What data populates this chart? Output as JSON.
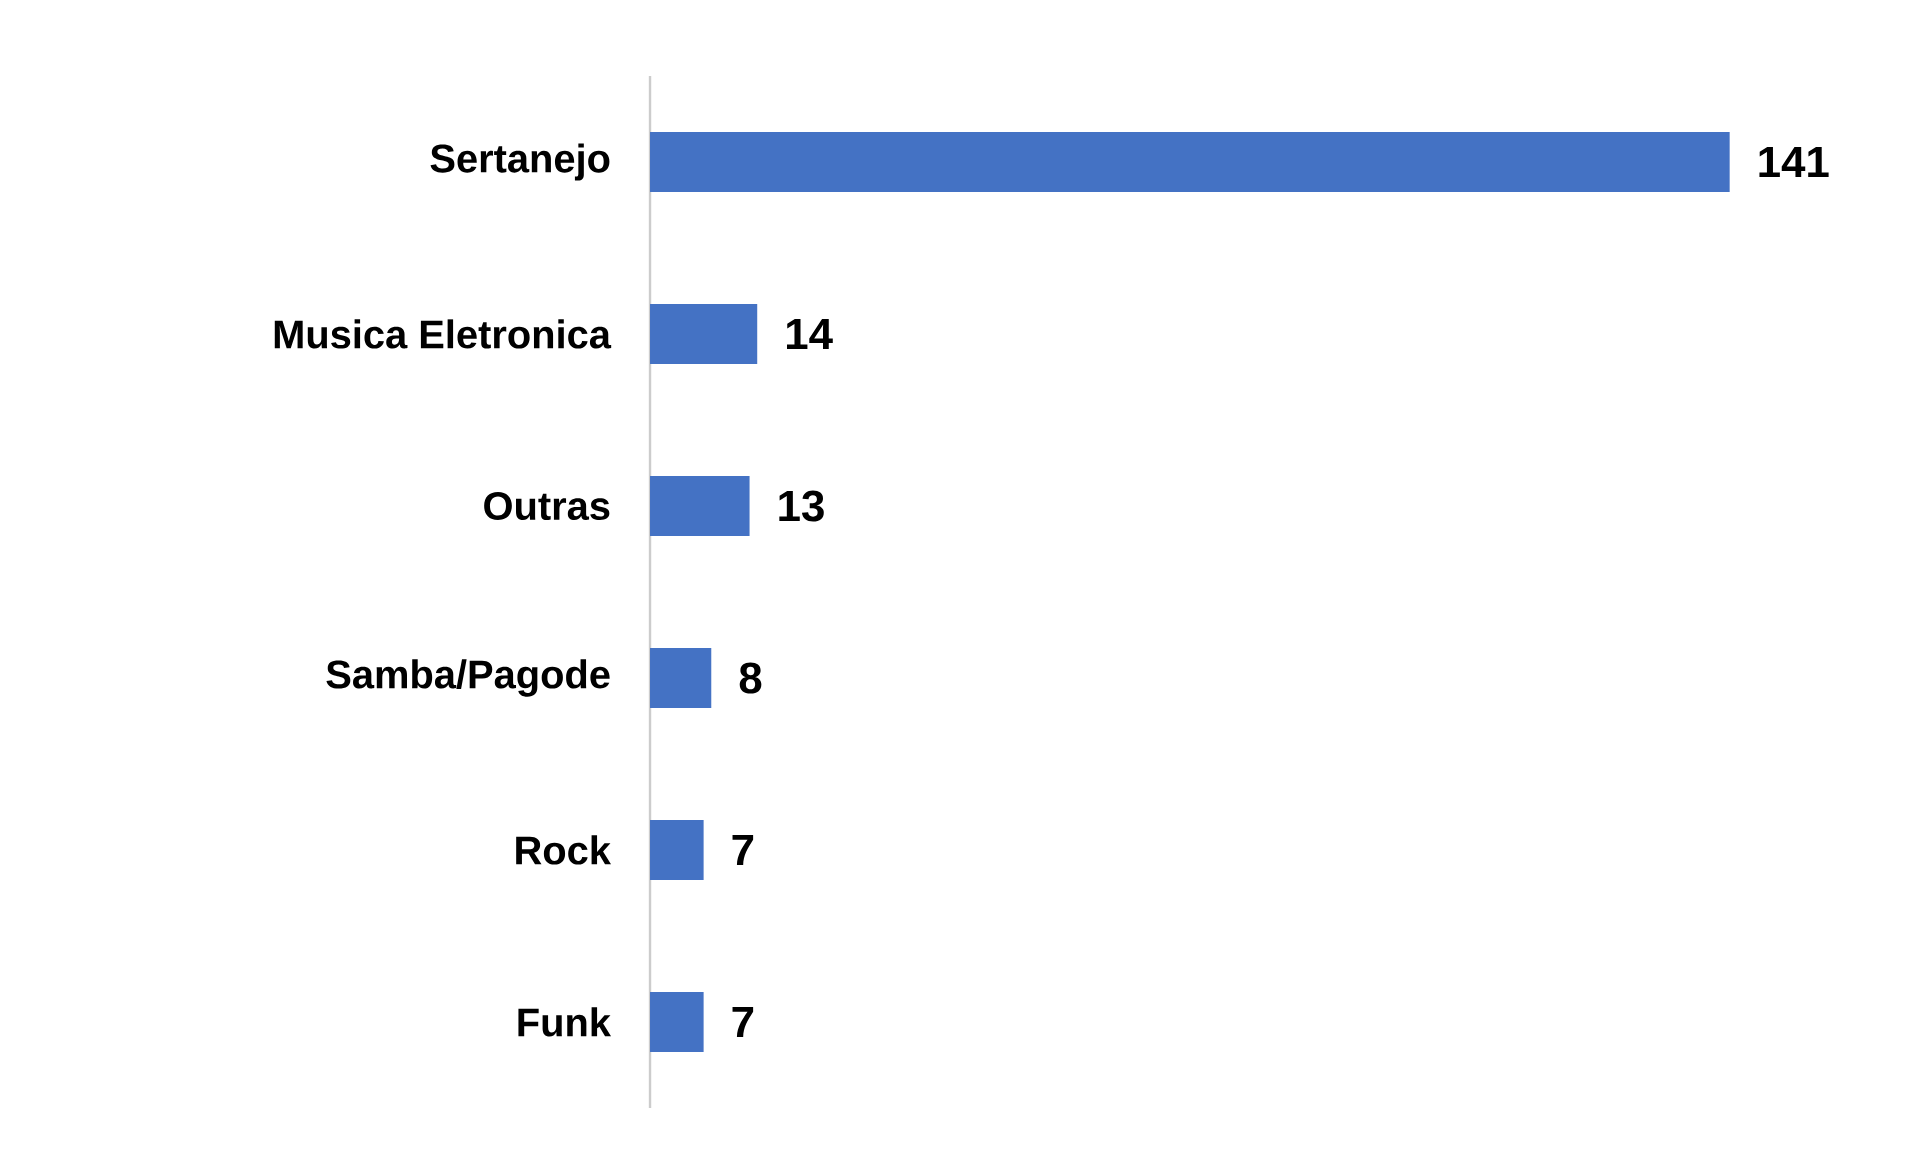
{
  "chart_data": {
    "type": "bar",
    "orientation": "horizontal",
    "categories": [
      "Sertanejo",
      "Musica Eletronica",
      "Outras",
      "Samba/Pagode",
      "Rock",
      "Funk"
    ],
    "values": [
      141,
      14,
      13,
      8,
      7,
      7
    ],
    "color": "#4472c4",
    "data_labels": true
  }
}
